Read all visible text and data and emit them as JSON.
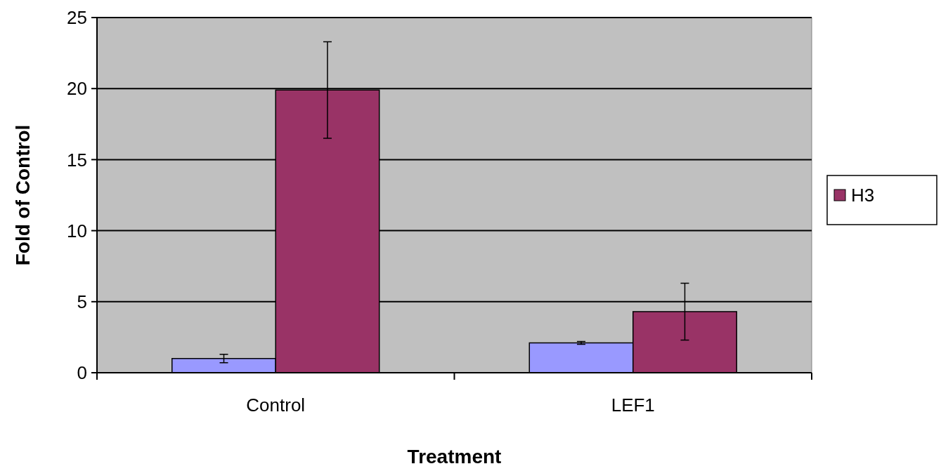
{
  "chart_data": {
    "type": "bar",
    "xlabel": "Treatment",
    "ylabel": "Fold of Control",
    "categories": [
      "Control",
      "LEF1"
    ],
    "series": [
      {
        "color": "#9999ff",
        "values": [
          1.0,
          2.1
        ],
        "errors": [
          0.3,
          0.1
        ]
      },
      {
        "name": "H3",
        "color": "#993366",
        "values": [
          19.9,
          4.3
        ],
        "errors": [
          3.4,
          2.0
        ]
      }
    ],
    "ylim": [
      0,
      25
    ],
    "yticks": [
      0,
      5,
      10,
      15,
      20,
      25
    ],
    "grid": "y",
    "legend": "right"
  }
}
